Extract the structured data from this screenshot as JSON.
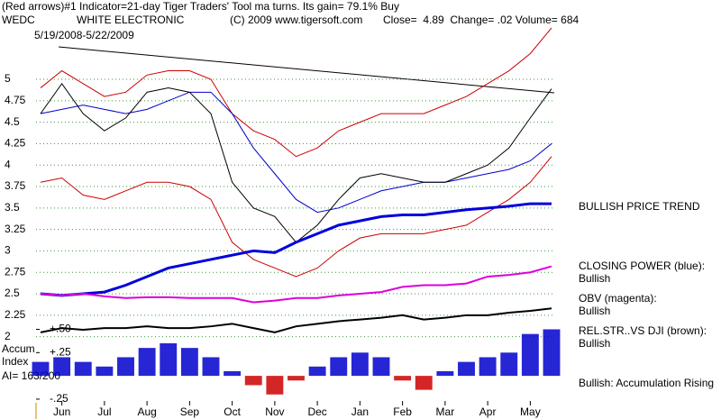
{
  "header": {
    "line1": "(Red arrows)#1 Indicator=21-day Tiger Traders' Tool ma turns. Its gain= 79.1% Buy",
    "ticker": "WEDC",
    "company": "WHITE ELECTRONIC",
    "copyright": "(C) 2009 www.tigersoft.com",
    "quote": "Close=  4.89  Change= .02 Volume= 684",
    "range": "5/19/2008-5/22/2009"
  },
  "annotations": [
    "BULLISH PRICE TREND",
    "CLOSING POWER (blue):",
    "Bullish",
    "OBV (magenta):",
    "Bullish",
    "REL.STR..VS DJI (brown):",
    "Bullish",
    "Bullish: Accumulation Rising"
  ],
  "panel_labels": [
    "Accum",
    "Index",
    "AI= 163/200"
  ],
  "chart_data": [
    {
      "type": "line",
      "grid": true,
      "categories": [
        null,
        "Jun",
        null,
        "Jul",
        null,
        "Aug",
        null,
        "Sep",
        null,
        "Oct",
        null,
        "Nov",
        null,
        "Dec",
        null,
        "Jan",
        null,
        "Feb",
        null,
        "Mar",
        null,
        "Apr",
        null,
        "May",
        null
      ],
      "ylim": [
        1.25,
        5.925
      ],
      "yticks": [
        5,
        4.75,
        4.5,
        4.25,
        4,
        3.75,
        3.5,
        3.25,
        3,
        2.75,
        2.5,
        2.25,
        2
      ],
      "series": [
        {
          "color": "#cc0000",
          "values": [
            4.9,
            5.1,
            4.95,
            4.8,
            4.85,
            5.05,
            5.1,
            5.1,
            5.0,
            4.6,
            4.4,
            4.3,
            4.1,
            4.2,
            4.4,
            4.5,
            4.6,
            4.6,
            4.6,
            4.7,
            4.8,
            4.95,
            5.1,
            5.3,
            5.6
          ]
        },
        {
          "color": "#cc0000",
          "values": [
            3.8,
            3.85,
            3.65,
            3.6,
            3.7,
            3.8,
            3.8,
            3.75,
            3.6,
            3.1,
            2.9,
            2.8,
            2.7,
            2.8,
            3.0,
            3.15,
            3.2,
            3.2,
            3.2,
            3.25,
            3.3,
            3.45,
            3.6,
            3.8,
            4.1
          ]
        },
        {
          "color": "#0000cc",
          "values": [
            4.6,
            4.65,
            4.7,
            4.65,
            4.6,
            4.65,
            4.75,
            4.85,
            4.85,
            4.6,
            4.2,
            3.9,
            3.6,
            3.45,
            3.5,
            3.6,
            3.7,
            3.75,
            3.8,
            3.8,
            3.85,
            3.9,
            3.95,
            4.05,
            4.25
          ]
        },
        {
          "color": "#000000",
          "values": [
            4.6,
            4.95,
            4.6,
            4.4,
            4.55,
            4.85,
            4.9,
            4.85,
            4.6,
            3.8,
            3.5,
            3.4,
            3.1,
            3.3,
            3.6,
            3.85,
            3.9,
            3.85,
            3.8,
            3.8,
            3.9,
            4.0,
            4.2,
            4.55,
            4.89
          ]
        },
        {
          "color": "#0000dd",
          "width": 3,
          "values": [
            2.5,
            2.48,
            2.5,
            2.52,
            2.6,
            2.7,
            2.8,
            2.85,
            2.9,
            2.95,
            3.0,
            2.98,
            3.1,
            3.2,
            3.3,
            3.35,
            3.4,
            3.42,
            3.42,
            3.45,
            3.48,
            3.5,
            3.52,
            3.55,
            3.55
          ]
        },
        {
          "color": "#dd00dd",
          "width": 2,
          "values": [
            2.5,
            2.48,
            2.5,
            2.47,
            2.45,
            2.46,
            2.46,
            2.45,
            2.45,
            2.45,
            2.4,
            2.42,
            2.45,
            2.45,
            2.48,
            2.5,
            2.52,
            2.58,
            2.6,
            2.6,
            2.62,
            2.7,
            2.72,
            2.75,
            2.82
          ]
        },
        {
          "color": "#000000",
          "width": 2,
          "values": [
            2.05,
            2.1,
            2.08,
            2.1,
            2.1,
            2.12,
            2.1,
            2.1,
            2.12,
            2.15,
            2.1,
            2.05,
            2.12,
            2.15,
            2.18,
            2.2,
            2.22,
            2.25,
            2.2,
            2.22,
            2.25,
            2.25,
            2.28,
            2.3,
            2.33
          ]
        }
      ]
    },
    {
      "type": "bar",
      "color": "#0000cc",
      "negative_color": "#cc0000",
      "ylim": [
        -0.27,
        0.65
      ],
      "yticks": [
        {
          "value": 0.5,
          "label": "+.50"
        },
        {
          "value": 0.25,
          "label": "+.25"
        },
        {
          "value": -0.25,
          "label": "-.25"
        }
      ],
      "values": [
        0.15,
        0.2,
        0.15,
        0.1,
        0.2,
        0.3,
        0.35,
        0.3,
        0.2,
        0.05,
        -0.1,
        -0.2,
        -0.05,
        0.1,
        0.2,
        0.25,
        0.2,
        -0.05,
        -0.15,
        0.05,
        0.15,
        0.2,
        0.25,
        0.45,
        0.5
      ]
    }
  ]
}
